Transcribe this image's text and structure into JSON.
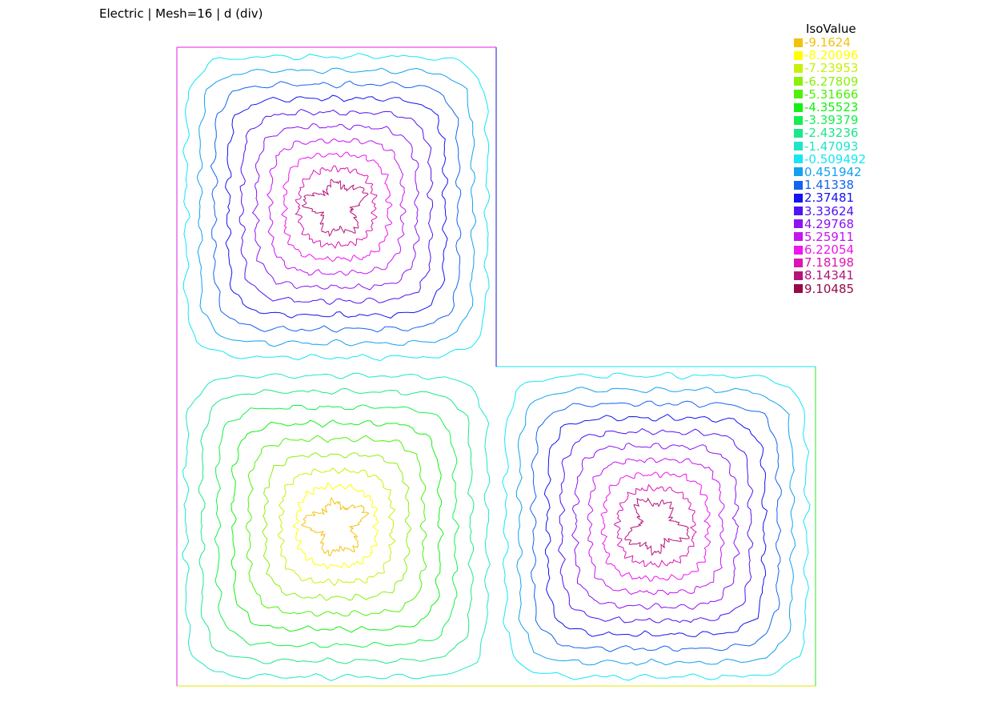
{
  "title": "Electric | Mesh=16 | d (div)",
  "legend": {
    "title": "IsoValue",
    "items": [
      {
        "label": "-9.1624",
        "color": "#f2c20f"
      },
      {
        "label": "-8.20096",
        "color": "#ffff00"
      },
      {
        "label": "-7.23953",
        "color": "#c6f20a"
      },
      {
        "label": "-6.27809",
        "color": "#8cf00a"
      },
      {
        "label": "-5.31666",
        "color": "#50f00a"
      },
      {
        "label": "-4.35523",
        "color": "#14f014"
      },
      {
        "label": "-3.39379",
        "color": "#14f050"
      },
      {
        "label": "-2.43236",
        "color": "#1ee68c"
      },
      {
        "label": "-1.47093",
        "color": "#1ee6c6"
      },
      {
        "label": "-0.509492",
        "color": "#14e6f5"
      },
      {
        "label": "0.451942",
        "color": "#14a0f0"
      },
      {
        "label": "1.41338",
        "color": "#1464f0"
      },
      {
        "label": "2.37481",
        "color": "#1414f0"
      },
      {
        "label": "3.33624",
        "color": "#5014f0"
      },
      {
        "label": "4.29768",
        "color": "#8c14f0"
      },
      {
        "label": "5.25911",
        "color": "#c614f0"
      },
      {
        "label": "6.22054",
        "color": "#f014f0"
      },
      {
        "label": "7.18198",
        "color": "#dc14b4"
      },
      {
        "label": "8.14341",
        "color": "#b4147a"
      },
      {
        "label": "9.10485",
        "color": "#960a46"
      }
    ]
  },
  "chart_data": {
    "type": "contour",
    "xlim": [
      0,
      2
    ],
    "ylim": [
      0,
      2
    ],
    "domain": "L-shaped region: square [0,2]x[0,2] minus upper-right quadrant [1,2]x[1,2]",
    "levels": [
      -9.1624,
      -8.20096,
      -7.23953,
      -6.27809,
      -5.31666,
      -4.35523,
      -3.39379,
      -2.43236,
      -1.47093,
      -0.509492,
      0.451942,
      1.41338,
      2.37481,
      3.33624,
      4.29768,
      5.25911,
      6.22054,
      7.18198,
      8.14341,
      9.10485
    ],
    "lobes": [
      {
        "center": [
          0.5,
          1.5
        ],
        "levels": [
          -0.509492,
          0.451942,
          1.41338,
          2.37481,
          3.33624,
          4.29768,
          5.25911,
          6.22054,
          7.18198,
          8.14341
        ]
      },
      {
        "center": [
          0.5,
          0.5
        ],
        "levels": [
          -1.47093,
          -2.43236,
          -3.39379,
          -4.35523,
          -5.31666,
          -6.27809,
          -7.23953,
          -8.20096,
          -9.1624
        ]
      },
      {
        "center": [
          1.5,
          0.5
        ],
        "levels": [
          -0.509492,
          0.451942,
          1.41338,
          2.37481,
          3.33624,
          4.29768,
          5.25911,
          6.22054,
          7.18198,
          8.14341
        ]
      }
    ]
  }
}
